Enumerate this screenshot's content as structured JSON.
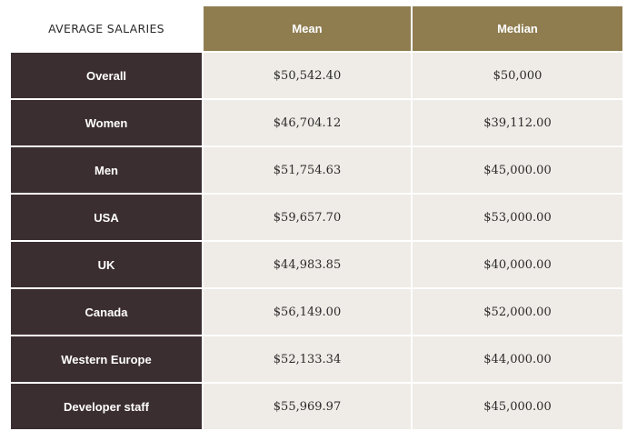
{
  "chart_data": {
    "type": "table",
    "title": "AVERAGE SALARIES",
    "columns": [
      "Mean",
      "Median"
    ],
    "rows": [
      {
        "label": "Overall",
        "values": [
          "$50,542.40",
          "$50,000"
        ]
      },
      {
        "label": "Women",
        "values": [
          "$46,704.12",
          "$39,112.00"
        ]
      },
      {
        "label": "Men",
        "values": [
          "$51,754.63",
          "$45,000.00"
        ]
      },
      {
        "label": "USA",
        "values": [
          "$59,657.70",
          "$53,000.00"
        ]
      },
      {
        "label": "UK",
        "values": [
          "$44,983.85",
          "$40,000.00"
        ]
      },
      {
        "label": "Canada",
        "values": [
          "$56,149.00",
          "$52,000.00"
        ]
      },
      {
        "label": "Western Europe",
        "values": [
          "$52,133.34",
          "$44,000.00"
        ]
      },
      {
        "label": "Developer staff",
        "values": [
          "$55,969.97",
          "$45,000.00"
        ]
      }
    ]
  },
  "colors": {
    "header": "#8f7d50",
    "row_label": "#3b2e31",
    "cell": "#efebe6"
  }
}
